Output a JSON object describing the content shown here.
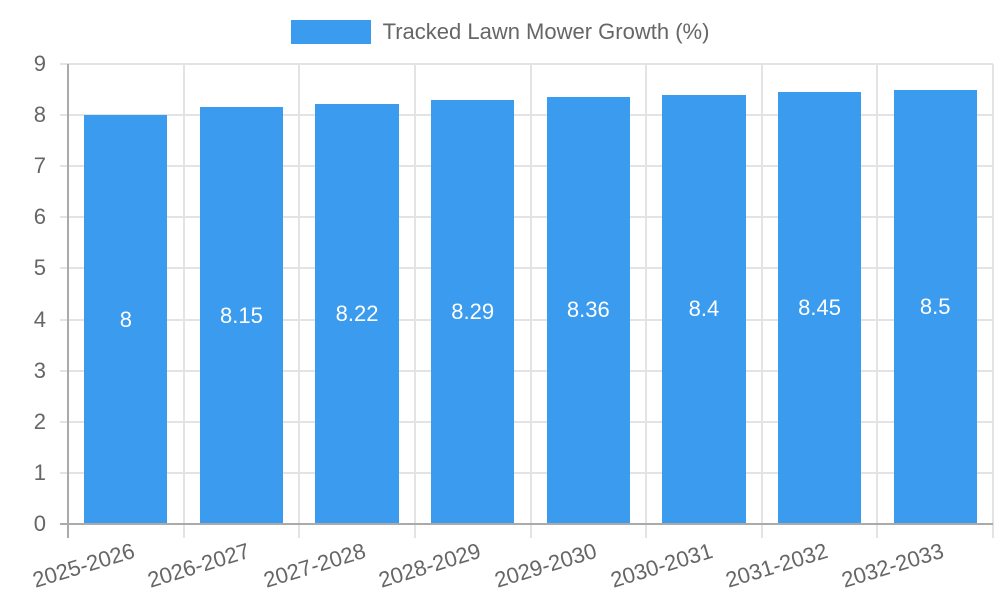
{
  "chart_data": {
    "type": "bar",
    "title": "",
    "xlabel": "",
    "ylabel": "",
    "categories": [
      "2025-2026",
      "2026-2027",
      "2027-2028",
      "2028-2029",
      "2029-2030",
      "2030-2031",
      "2031-2032",
      "2032-2033"
    ],
    "series": [
      {
        "name": "Tracked Lawn Mower Growth (%)",
        "values": [
          8,
          8.15,
          8.22,
          8.29,
          8.36,
          8.4,
          8.45,
          8.5
        ],
        "color": "#3a9bef"
      }
    ],
    "value_labels": [
      "8",
      "8.15",
      "8.22",
      "8.29",
      "8.36",
      "8.4",
      "8.45",
      "8.5"
    ],
    "ylim": [
      0,
      9
    ],
    "yticks": [
      "0",
      "1",
      "2",
      "3",
      "4",
      "5",
      "6",
      "7",
      "8",
      "9"
    ],
    "grid": true,
    "legend_position": "top"
  },
  "legend": {
    "label": "Tracked Lawn Mower Growth (%)",
    "color": "#3a9bef"
  }
}
